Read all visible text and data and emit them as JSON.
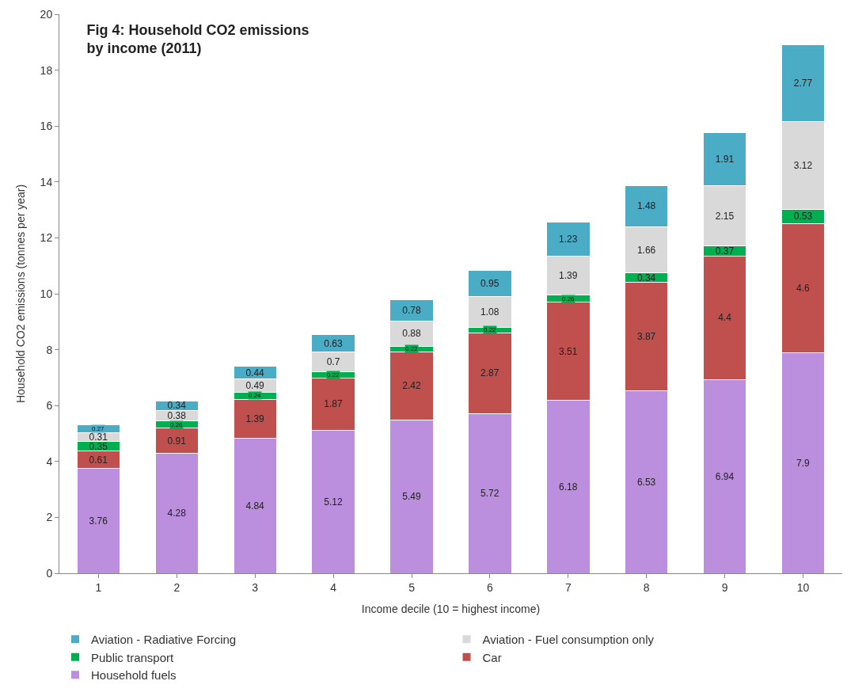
{
  "chart_data": {
    "type": "bar",
    "stacked": true,
    "title": "Fig 4: Household CO2 emissions\nby income (2011)",
    "xlabel": "Income decile (10 = highest income)",
    "ylabel": "Household CO2 emissions (tonnes per year)",
    "categories": [
      "1",
      "2",
      "3",
      "4",
      "5",
      "6",
      "7",
      "8",
      "9",
      "10"
    ],
    "series": [
      {
        "name": "Household fuels",
        "color": "#bb8fdd",
        "values": [
          3.76,
          4.28,
          4.84,
          5.12,
          5.49,
          5.72,
          6.18,
          6.53,
          6.94,
          7.9
        ]
      },
      {
        "name": "Car",
        "color": "#c0504d",
        "values": [
          0.61,
          0.91,
          1.39,
          1.87,
          2.42,
          2.87,
          3.51,
          3.87,
          4.4,
          4.6
        ]
      },
      {
        "name": "Public transport",
        "color": "#00b050",
        "values": [
          0.35,
          0.26,
          0.24,
          0.22,
          0.22,
          0.22,
          0.26,
          0.34,
          0.37,
          0.53
        ]
      },
      {
        "name": "Aviation - Fuel consumption only",
        "color": "#d9d9d9",
        "values": [
          0.31,
          0.38,
          0.49,
          0.7,
          0.88,
          1.08,
          1.39,
          1.66,
          2.15,
          3.12
        ]
      },
      {
        "name": "Aviation - Radiative Forcing",
        "color": "#4bacc6",
        "values": [
          0.27,
          0.34,
          0.44,
          0.63,
          0.78,
          0.95,
          1.23,
          1.48,
          1.91,
          2.77
        ]
      }
    ],
    "ylim": [
      0,
      20
    ],
    "yticks": [
      0,
      2,
      4,
      6,
      8,
      10,
      12,
      14,
      16,
      18,
      20
    ],
    "data_labels": true,
    "grid": false,
    "legend": "bottom"
  }
}
